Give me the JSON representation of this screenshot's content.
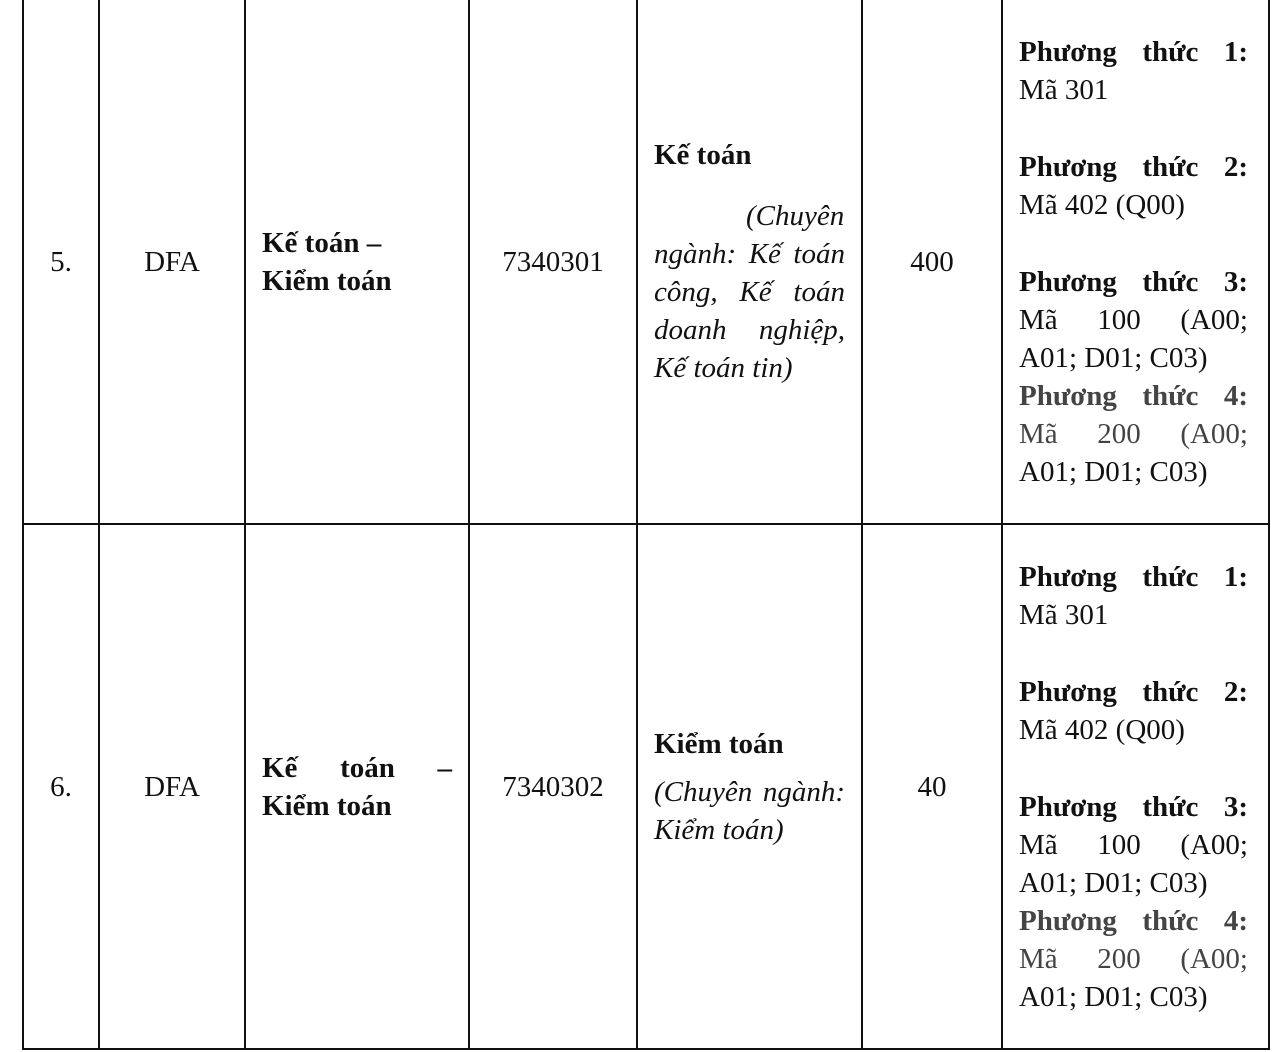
{
  "rows": [
    {
      "stt": "5.",
      "school_code": "DFA",
      "major_group_line1": "Kế toán –",
      "major_group_line2": "Kiểm toán",
      "major_code": "7340301",
      "major_title": "Kế toán",
      "major_desc": "(Chuyên ngành: Kế toán công, Kế toán doanh nghiệp, Kế toán tin)",
      "quota": "400",
      "methods": [
        {
          "label": "Phương thức 1:",
          "value_line1": "Mã 301",
          "value_line2": ""
        },
        {
          "label": "Phương thức 2:",
          "value_line1": "Mã 402 (Q00)",
          "value_line2": ""
        },
        {
          "label": "Phương thức 3:",
          "value_line1": "Mã 100 (A00;",
          "value_line2": "A01; D01; C03)"
        },
        {
          "label": "Phương thức 4:",
          "value_line1": "Mã 200 (A00;",
          "value_line2": "A01; D01; C03)"
        }
      ]
    },
    {
      "stt": "6.",
      "school_code": "DFA",
      "major_group_line1": "Kế toán –",
      "major_group_line2": "Kiểm toán",
      "major_code": "7340302",
      "major_title": "Kiểm toán",
      "major_desc": "(Chuyên ngành: Kiểm toán)",
      "quota": "40",
      "methods": [
        {
          "label": "Phương thức 1:",
          "value_line1": "Mã 301",
          "value_line2": ""
        },
        {
          "label": "Phương thức 2:",
          "value_line1": "Mã 402 (Q00)",
          "value_line2": ""
        },
        {
          "label": "Phương thức 3:",
          "value_line1": "Mã 100 (A00;",
          "value_line2": "A01; D01; C03)"
        },
        {
          "label": "Phương thức 4:",
          "value_line1": "Mã 200 (A00;",
          "value_line2": "A01; D01; C03)"
        }
      ]
    }
  ],
  "colors": {
    "text": "#111111",
    "method4_text": "#444444",
    "border": "#111111"
  }
}
